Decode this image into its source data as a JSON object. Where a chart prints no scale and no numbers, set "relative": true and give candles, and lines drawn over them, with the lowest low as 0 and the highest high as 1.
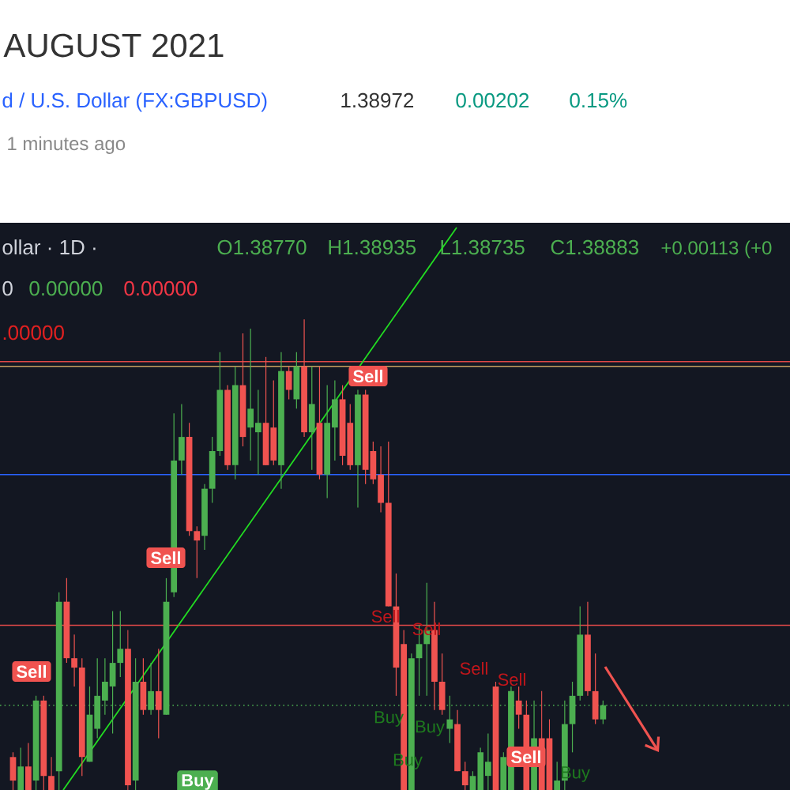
{
  "chart_data": {
    "type": "candlestick",
    "title": "AUGUST 2021",
    "subtitle": "d / U.S. Dollar (FX:GBPUSD)",
    "relative": true,
    "categories": [
      null,
      null,
      null,
      null,
      null,
      null,
      null,
      null,
      null,
      null,
      null,
      null,
      null,
      null,
      null,
      null,
      null,
      null,
      null,
      null,
      null,
      null,
      null,
      null,
      null,
      null,
      null,
      null,
      null,
      null,
      null,
      null,
      null,
      null,
      null,
      null,
      null,
      null,
      null,
      null,
      null,
      null,
      null,
      null,
      null,
      null,
      null,
      null,
      null,
      null,
      null,
      null,
      null,
      null,
      null,
      null,
      null,
      null,
      null,
      null,
      null,
      null,
      null,
      null,
      null,
      null,
      null,
      null,
      null,
      null,
      null,
      null,
      null,
      null,
      null,
      null,
      null,
      null
    ],
    "ohlc": [
      [
        0.07,
        0.08,
        0,
        0.02
      ],
      [
        0,
        0.09,
        0,
        0.05
      ],
      [
        0.05,
        0.1,
        0,
        0
      ],
      [
        0.02,
        0.2,
        0,
        0.19
      ],
      [
        0.19,
        0.2,
        0,
        0.03
      ],
      [
        0.03,
        0.07,
        0,
        0
      ],
      [
        0.04,
        0.42,
        0,
        0.4
      ],
      [
        0.4,
        0.45,
        0.27,
        0.28
      ],
      [
        0.28,
        0.33,
        0.22,
        0.26
      ],
      [
        0.26,
        0.28,
        0.03,
        0.07
      ],
      [
        0.06,
        0.22,
        0.06,
        0.16
      ],
      [
        0.13,
        0.28,
        0.11,
        0.2
      ],
      [
        0.19,
        0.28,
        0.16,
        0.23
      ],
      [
        0.22,
        0.38,
        0.12,
        0.27
      ],
      [
        0.27,
        0.38,
        0.24,
        0.3
      ],
      [
        0.3,
        0.34,
        0,
        0.01
      ],
      [
        0.02,
        0.28,
        0,
        0.23
      ],
      [
        0.23,
        0.28,
        0.16,
        0.17
      ],
      [
        0.17,
        0.27,
        0.16,
        0.21
      ],
      [
        0.21,
        0.3,
        0.11,
        0.17
      ],
      [
        0.16,
        0.45,
        0.16,
        0.4
      ],
      [
        0.42,
        0.8,
        0.41,
        0.7
      ],
      [
        0.7,
        0.82,
        0.67,
        0.75
      ],
      [
        0.75,
        0.78,
        0.54,
        0.55
      ],
      [
        0.55,
        0.56,
        0.45,
        0.53
      ],
      [
        0.54,
        0.65,
        0.51,
        0.64
      ],
      [
        0.64,
        0.75,
        0.61,
        0.72
      ],
      [
        0.72,
        0.93,
        0.71,
        0.85
      ],
      [
        0.85,
        0.86,
        0.68,
        0.69
      ],
      [
        0.69,
        0.9,
        0.66,
        0.86
      ],
      [
        0.86,
        0.97,
        0.73,
        0.75
      ],
      [
        0.77,
        0.98,
        0.7,
        0.81
      ],
      [
        0.76,
        0.85,
        0.67,
        0.78
      ],
      [
        0.78,
        0.92,
        0.69,
        0.69
      ],
      [
        0.77,
        0.87,
        0.69,
        0.7
      ],
      [
        0.69,
        0.93,
        0.64,
        0.89
      ],
      [
        0.89,
        0.9,
        0.83,
        0.85
      ],
      [
        0.83,
        0.93,
        0.81,
        0.9
      ],
      [
        0.9,
        1,
        0.75,
        0.76
      ],
      [
        0.76,
        0.9,
        0.68,
        0.82
      ],
      [
        0.78,
        0.9,
        0.66,
        0.67
      ],
      [
        0.67,
        0.86,
        0.62,
        0.78
      ],
      [
        0.77,
        0.87,
        0.7,
        0.83
      ],
      [
        0.83,
        0.86,
        0.69,
        0.71
      ],
      [
        0.78,
        0.82,
        0.68,
        0.69
      ],
      [
        0.69,
        0.85,
        0.6,
        0.84
      ],
      [
        0.84,
        0.85,
        0.65,
        0.68
      ],
      [
        0.72,
        0.74,
        0.65,
        0.66
      ],
      [
        0.67,
        0.73,
        0.59,
        0.61
      ],
      [
        0.61,
        0.74,
        0.39,
        0.39
      ],
      [
        0.39,
        0.46,
        0.2,
        0.26
      ],
      [
        0.31,
        0.34,
        0,
        0
      ],
      [
        0,
        0.29,
        0,
        0.28
      ],
      [
        0.28,
        0.35,
        0.2,
        0.31
      ],
      [
        0.31,
        0.44,
        0.2,
        0.34
      ],
      [
        0.34,
        0.4,
        0.17,
        0.23
      ],
      [
        0.23,
        0.29,
        0.16,
        0.17
      ],
      [
        0.13,
        0.2,
        0.1,
        0.15
      ],
      [
        0.14,
        0.17,
        0.04,
        0.04
      ],
      [
        0.04,
        0.06,
        0,
        0.01
      ],
      [
        0,
        0.04,
        0,
        0.03
      ],
      [
        0,
        0.09,
        0,
        0.08
      ],
      [
        0.03,
        0.12,
        0,
        0.06
      ],
      [
        0.22,
        0.23,
        0,
        0
      ],
      [
        0,
        0.08,
        0,
        0.07
      ],
      [
        0,
        0.22,
        0,
        0.21
      ],
      [
        0.19,
        0.22,
        0.13,
        0.16
      ],
      [
        0.16,
        0.19,
        0,
        0
      ],
      [
        0,
        0.19,
        0,
        0.11
      ],
      [
        0.11,
        0.21,
        0,
        0
      ],
      [
        0.11,
        0.15,
        0,
        0
      ],
      [
        0,
        0.06,
        0,
        0.02
      ],
      [
        0.02,
        0.19,
        0,
        0.14
      ],
      [
        0.14,
        0.23,
        0.08,
        0.2
      ],
      [
        0.2,
        0.39,
        0.19,
        0.33
      ],
      [
        0.33,
        0.4,
        0.2,
        0.21
      ],
      [
        0.21,
        0.29,
        0.14,
        0.15
      ],
      [
        0.15,
        0.19,
        0.14,
        0.18
      ]
    ],
    "ref_lines": [
      {
        "axis": "y",
        "value": 0.91,
        "color": "#e04848"
      },
      {
        "axis": "y",
        "value": 0.67,
        "color": "#2962ff"
      },
      {
        "axis": "y",
        "value": 0.9,
        "color": "#c8a060"
      },
      {
        "axis": "y",
        "value": 0.35,
        "color": "#e04848"
      },
      {
        "axis": "y",
        "value": 0.18,
        "color": "#4caf50",
        "line_style": "dotted"
      }
    ],
    "annotations": [
      "1.38972",
      "0.00202",
      "0.15%",
      "1 minutes ago",
      "ollar · 1D ·",
      "O1.38770",
      "H1.38935",
      "L1.38735",
      "C1.38883",
      "+0.00113 (+0",
      "0",
      "0.00000",
      "0.00000",
      ".00000",
      "Sell",
      "Sell",
      "Sell",
      "Buy",
      "Sell",
      "Sell",
      "Sell",
      "Sell",
      "Sell",
      "Buy",
      "Buy",
      "Buy",
      "Buy"
    ]
  }
}
